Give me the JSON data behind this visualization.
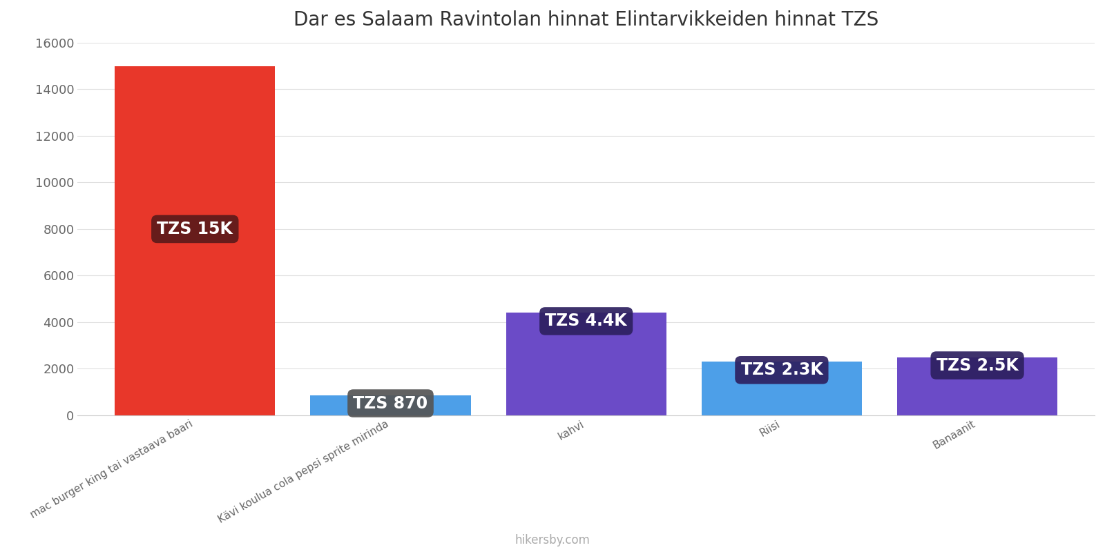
{
  "title": "Dar es Salaam Ravintolan hinnat Elintarvikkeiden hinnat TZS",
  "categories": [
    "mac burger king tai vastaava baari",
    "Kävi koulua cola pepsi sprite mirinda",
    "kahvi",
    "Riisi",
    "Banaanit"
  ],
  "values": [
    15000,
    870,
    4400,
    2300,
    2500
  ],
  "bar_colors": [
    "#e8372a",
    "#4d9fe8",
    "#6b4bc7",
    "#4d9fe8",
    "#6b4bc7"
  ],
  "label_texts": [
    "TZS 15K",
    "TZS 870",
    "TZS 4.4K",
    "TZS 2.3K",
    "TZS 2.5K"
  ],
  "label_box_colors": [
    "#5c1a1a",
    "#555555",
    "#2d2060",
    "#2d2060",
    "#2d2060"
  ],
  "label_y_offsets": [
    8000,
    870,
    4400,
    2300,
    2500
  ],
  "ylim": [
    0,
    16000
  ],
  "yticks": [
    0,
    2000,
    4000,
    6000,
    8000,
    10000,
    12000,
    14000,
    16000
  ],
  "background_color": "#ffffff",
  "watermark": "hikersby.com",
  "title_fontsize": 20,
  "label_fontsize": 17,
  "tick_fontsize": 13,
  "xlabel_fontsize": 11,
  "bar_width": 0.82
}
